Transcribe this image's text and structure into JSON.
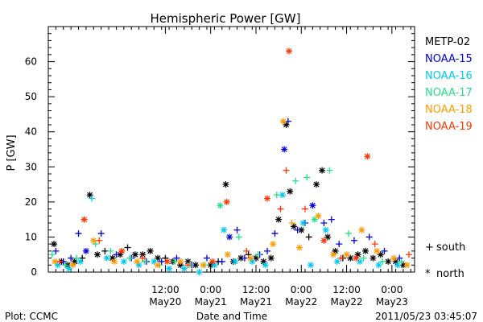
{
  "chart_data": {
    "type": "scatter",
    "title": "Hemispheric Power [GW]",
    "ylabel": "P [GW]",
    "xlabel": "Date and Time",
    "ylim": [
      0,
      70
    ],
    "yticks": [
      0,
      10,
      20,
      30,
      40,
      50,
      60
    ],
    "xlim": [
      "2011-05-19T05:00",
      "2011-05-23T06:00"
    ],
    "xticks": [
      {
        "line1": "12:00",
        "line2": "May20",
        "t": "2011-05-20T12:00"
      },
      {
        "line1": "0:00",
        "line2": "May21",
        "t": "2011-05-21T00:00"
      },
      {
        "line1": "12:00",
        "line2": "May21",
        "t": "2011-05-21T12:00"
      },
      {
        "line1": "0:00",
        "line2": "May22",
        "t": "2011-05-22T00:00"
      },
      {
        "line1": "12:00",
        "line2": "May22",
        "t": "2011-05-22T12:00"
      },
      {
        "line1": "0:00",
        "line2": "May23",
        "t": "2011-05-23T00:00"
      }
    ],
    "legend": [
      {
        "name": "METP-02",
        "color": "#000000"
      },
      {
        "name": "NOAA-15",
        "color": "#0000dd"
      },
      {
        "name": "NOAA-16",
        "color": "#00c8f0"
      },
      {
        "name": "NOAA-17",
        "color": "#22e08a"
      },
      {
        "name": "NOAA-18",
        "color": "#ff9a00"
      },
      {
        "name": "NOAA-19",
        "color": "#ff3300"
      }
    ],
    "marker_legend": {
      "south_symbol": "+",
      "south": "south",
      "north_symbol": "*",
      "north": "north"
    },
    "series": [
      {
        "name": "METP-02",
        "color": "#000000",
        "points": [
          {
            "t": "2011-05-19T06:30",
            "y": 8,
            "h": "n"
          },
          {
            "t": "2011-05-19T08:30",
            "y": 3,
            "h": "n"
          },
          {
            "t": "2011-05-19T10:10",
            "y": 2,
            "h": "n"
          },
          {
            "t": "2011-05-19T12:00",
            "y": 3,
            "h": "n"
          },
          {
            "t": "2011-05-19T14:00",
            "y": 4,
            "h": "s"
          },
          {
            "t": "2011-05-19T16:00",
            "y": 22,
            "h": "n"
          },
          {
            "t": "2011-05-19T18:00",
            "y": 5,
            "h": "n"
          },
          {
            "t": "2011-05-19T20:00",
            "y": 6,
            "h": "s"
          },
          {
            "t": "2011-05-19T22:00",
            "y": 4,
            "h": "n"
          },
          {
            "t": "2011-05-20T00:00",
            "y": 5,
            "h": "n"
          },
          {
            "t": "2011-05-20T02:00",
            "y": 7,
            "h": "s"
          },
          {
            "t": "2011-05-20T04:00",
            "y": 5,
            "h": "n"
          },
          {
            "t": "2011-05-20T06:00",
            "y": 5,
            "h": "n"
          },
          {
            "t": "2011-05-20T08:00",
            "y": 6,
            "h": "n"
          },
          {
            "t": "2011-05-20T10:00",
            "y": 4,
            "h": "n"
          },
          {
            "t": "2011-05-20T12:00",
            "y": 4,
            "h": "s"
          },
          {
            "t": "2011-05-20T14:00",
            "y": 3,
            "h": "n"
          },
          {
            "t": "2011-05-20T16:00",
            "y": 2,
            "h": "n"
          },
          {
            "t": "2011-05-20T18:00",
            "y": 3,
            "h": "n"
          },
          {
            "t": "2011-05-20T20:00",
            "y": 2,
            "h": "n"
          },
          {
            "t": "2011-05-21T00:00",
            "y": 2,
            "h": "n"
          },
          {
            "t": "2011-05-21T02:00",
            "y": 3,
            "h": "s"
          },
          {
            "t": "2011-05-21T04:00",
            "y": 25,
            "h": "n"
          },
          {
            "t": "2011-05-21T06:00",
            "y": 3,
            "h": "n"
          },
          {
            "t": "2011-05-21T08:00",
            "y": 4,
            "h": "n"
          },
          {
            "t": "2011-05-21T10:00",
            "y": 5,
            "h": "s"
          },
          {
            "t": "2011-05-21T12:00",
            "y": 4,
            "h": "n"
          },
          {
            "t": "2011-05-21T14:00",
            "y": 3,
            "h": "n"
          },
          {
            "t": "2011-05-21T16:00",
            "y": 4,
            "h": "n"
          },
          {
            "t": "2011-05-21T18:00",
            "y": 15,
            "h": "n"
          },
          {
            "t": "2011-05-21T20:00",
            "y": 42,
            "h": "n"
          },
          {
            "t": "2011-05-21T21:00",
            "y": 23,
            "h": "n"
          },
          {
            "t": "2011-05-21T22:00",
            "y": 13,
            "h": "n"
          },
          {
            "t": "2011-05-22T00:00",
            "y": 12,
            "h": "n"
          },
          {
            "t": "2011-05-22T02:00",
            "y": 10,
            "h": "s"
          },
          {
            "t": "2011-05-22T04:00",
            "y": 25,
            "h": "n"
          },
          {
            "t": "2011-05-22T05:30",
            "y": 29,
            "h": "n"
          },
          {
            "t": "2011-05-22T07:00",
            "y": 10,
            "h": "n"
          },
          {
            "t": "2011-05-22T09:00",
            "y": 6,
            "h": "n"
          },
          {
            "t": "2011-05-22T11:00",
            "y": 4,
            "h": "s"
          },
          {
            "t": "2011-05-22T13:00",
            "y": 4,
            "h": "n"
          },
          {
            "t": "2011-05-22T15:00",
            "y": 5,
            "h": "n"
          },
          {
            "t": "2011-05-22T17:00",
            "y": 6,
            "h": "n"
          },
          {
            "t": "2011-05-22T19:00",
            "y": 4,
            "h": "n"
          },
          {
            "t": "2011-05-22T21:00",
            "y": 5,
            "h": "n"
          },
          {
            "t": "2011-05-22T23:00",
            "y": 3,
            "h": "n"
          },
          {
            "t": "2011-05-23T01:00",
            "y": 3,
            "h": "n"
          },
          {
            "t": "2011-05-23T03:00",
            "y": 2,
            "h": "n"
          }
        ]
      },
      {
        "name": "NOAA-15",
        "color": "#0000dd",
        "points": [
          {
            "t": "2011-05-19T07:00",
            "y": 6,
            "h": "s"
          },
          {
            "t": "2011-05-19T09:00",
            "y": 3,
            "h": "s"
          },
          {
            "t": "2011-05-19T11:00",
            "y": 4,
            "h": "s"
          },
          {
            "t": "2011-05-19T13:00",
            "y": 11,
            "h": "s"
          },
          {
            "t": "2011-05-19T15:00",
            "y": 6,
            "h": "n"
          },
          {
            "t": "2011-05-19T19:00",
            "y": 11,
            "h": "s"
          },
          {
            "t": "2011-05-19T23:00",
            "y": 5,
            "h": "s"
          },
          {
            "t": "2011-05-20T03:00",
            "y": 4,
            "h": "s"
          },
          {
            "t": "2011-05-20T07:00",
            "y": 3,
            "h": "s"
          },
          {
            "t": "2011-05-20T11:00",
            "y": 3,
            "h": "s"
          },
          {
            "t": "2011-05-20T15:00",
            "y": 4,
            "h": "s"
          },
          {
            "t": "2011-05-20T19:00",
            "y": 2,
            "h": "s"
          },
          {
            "t": "2011-05-20T23:00",
            "y": 4,
            "h": "s"
          },
          {
            "t": "2011-05-21T03:00",
            "y": 3,
            "h": "s"
          },
          {
            "t": "2011-05-21T05:00",
            "y": 10,
            "h": "n"
          },
          {
            "t": "2011-05-21T07:00",
            "y": 12,
            "h": "s"
          },
          {
            "t": "2011-05-21T09:00",
            "y": 4,
            "h": "s"
          },
          {
            "t": "2011-05-21T13:00",
            "y": 5,
            "h": "s"
          },
          {
            "t": "2011-05-21T15:00",
            "y": 6,
            "h": "s"
          },
          {
            "t": "2011-05-21T17:00",
            "y": 11,
            "h": "s"
          },
          {
            "t": "2011-05-21T19:30",
            "y": 35,
            "h": "n"
          },
          {
            "t": "2011-05-21T20:30",
            "y": 43,
            "h": "s"
          },
          {
            "t": "2011-05-21T23:00",
            "y": 12,
            "h": "s"
          },
          {
            "t": "2011-05-22T01:00",
            "y": 14,
            "h": "s"
          },
          {
            "t": "2011-05-22T03:00",
            "y": 19,
            "h": "n"
          },
          {
            "t": "2011-05-22T06:00",
            "y": 14,
            "h": "s"
          },
          {
            "t": "2011-05-22T08:00",
            "y": 15,
            "h": "s"
          },
          {
            "t": "2011-05-22T10:00",
            "y": 8,
            "h": "s"
          },
          {
            "t": "2011-05-22T14:00",
            "y": 9,
            "h": "s"
          },
          {
            "t": "2011-05-22T18:00",
            "y": 10,
            "h": "s"
          },
          {
            "t": "2011-05-22T22:00",
            "y": 6,
            "h": "s"
          },
          {
            "t": "2011-05-23T02:00",
            "y": 4,
            "h": "s"
          }
        ]
      },
      {
        "name": "NOAA-16",
        "color": "#00c8f0",
        "points": [
          {
            "t": "2011-05-19T07:30",
            "y": 2,
            "h": "n"
          },
          {
            "t": "2011-05-19T10:30",
            "y": 1,
            "h": "n"
          },
          {
            "t": "2011-05-19T13:30",
            "y": 3,
            "h": "n"
          },
          {
            "t": "2011-05-19T16:30",
            "y": 21,
            "h": "s"
          },
          {
            "t": "2011-05-19T20:30",
            "y": 4,
            "h": "n"
          },
          {
            "t": "2011-05-20T01:00",
            "y": 3,
            "h": "n"
          },
          {
            "t": "2011-05-20T05:00",
            "y": 2,
            "h": "n"
          },
          {
            "t": "2011-05-20T09:00",
            "y": 3,
            "h": "n"
          },
          {
            "t": "2011-05-20T13:00",
            "y": 1,
            "h": "n"
          },
          {
            "t": "2011-05-20T17:00",
            "y": 1,
            "h": "n"
          },
          {
            "t": "2011-05-20T21:00",
            "y": 0,
            "h": "n"
          },
          {
            "t": "2011-05-21T01:00",
            "y": 2,
            "h": "n"
          },
          {
            "t": "2011-05-21T03:30",
            "y": 12,
            "h": "n"
          },
          {
            "t": "2011-05-21T06:30",
            "y": 3,
            "h": "n"
          },
          {
            "t": "2011-05-21T11:00",
            "y": 3,
            "h": "n"
          },
          {
            "t": "2011-05-21T14:30",
            "y": 2,
            "h": "n"
          },
          {
            "t": "2011-05-21T19:00",
            "y": 22,
            "h": "n"
          },
          {
            "t": "2011-05-22T00:30",
            "y": 14,
            "h": "n"
          },
          {
            "t": "2011-05-22T02:30",
            "y": 2,
            "h": "n"
          },
          {
            "t": "2011-05-22T06:30",
            "y": 12,
            "h": "n"
          },
          {
            "t": "2011-05-22T09:30",
            "y": 3,
            "h": "n"
          },
          {
            "t": "2011-05-22T15:30",
            "y": 3,
            "h": "n"
          },
          {
            "t": "2011-05-22T20:30",
            "y": 2,
            "h": "n"
          },
          {
            "t": "2011-05-23T01:30",
            "y": 2,
            "h": "n"
          }
        ]
      },
      {
        "name": "NOAA-17",
        "color": "#22e08a",
        "points": [
          {
            "t": "2011-05-19T06:00",
            "y": 5,
            "h": "s"
          },
          {
            "t": "2011-05-19T09:30",
            "y": 2,
            "h": "s"
          },
          {
            "t": "2011-05-19T12:30",
            "y": 4,
            "h": "s"
          },
          {
            "t": "2011-05-19T17:30",
            "y": 8,
            "h": "s"
          },
          {
            "t": "2011-05-19T21:30",
            "y": 6,
            "h": "s"
          },
          {
            "t": "2011-05-20T02:30",
            "y": 4,
            "h": "s"
          },
          {
            "t": "2011-05-20T06:30",
            "y": 3,
            "h": "s"
          },
          {
            "t": "2011-05-20T10:30",
            "y": 2,
            "h": "s"
          },
          {
            "t": "2011-05-20T14:30",
            "y": 3,
            "h": "s"
          },
          {
            "t": "2011-05-20T18:30",
            "y": 2,
            "h": "s"
          },
          {
            "t": "2011-05-20T22:30",
            "y": 2,
            "h": "s"
          },
          {
            "t": "2011-05-21T02:30",
            "y": 19,
            "h": "n"
          },
          {
            "t": "2011-05-21T07:30",
            "y": 10,
            "h": "s"
          },
          {
            "t": "2011-05-21T12:30",
            "y": 5,
            "h": "s"
          },
          {
            "t": "2011-05-21T17:30",
            "y": 22,
            "h": "s"
          },
          {
            "t": "2011-05-21T22:30",
            "y": 26,
            "h": "s"
          },
          {
            "t": "2011-05-22T01:30",
            "y": 27,
            "h": "s"
          },
          {
            "t": "2011-05-22T03:30",
            "y": 15,
            "h": "n"
          },
          {
            "t": "2011-05-22T07:30",
            "y": 29,
            "h": "s"
          },
          {
            "t": "2011-05-22T12:30",
            "y": 11,
            "h": "s"
          },
          {
            "t": "2011-05-22T16:30",
            "y": 4,
            "h": "s"
          },
          {
            "t": "2011-05-22T21:30",
            "y": 3,
            "h": "s"
          },
          {
            "t": "2011-05-23T02:30",
            "y": 3,
            "h": "s"
          }
        ]
      },
      {
        "name": "NOAA-18",
        "color": "#ff9a00",
        "points": [
          {
            "t": "2011-05-19T06:45",
            "y": 3,
            "h": "n"
          },
          {
            "t": "2011-05-19T11:30",
            "y": 2,
            "h": "n"
          },
          {
            "t": "2011-05-19T17:00",
            "y": 9,
            "h": "n"
          },
          {
            "t": "2011-05-19T22:30",
            "y": 3,
            "h": "n"
          },
          {
            "t": "2011-05-20T04:30",
            "y": 3,
            "h": "n"
          },
          {
            "t": "2011-05-20T10:00",
            "y": 2,
            "h": "n"
          },
          {
            "t": "2011-05-20T16:00",
            "y": 3,
            "h": "n"
          },
          {
            "t": "2011-05-20T22:00",
            "y": 2,
            "h": "n"
          },
          {
            "t": "2011-05-21T04:30",
            "y": 5,
            "h": "n"
          },
          {
            "t": "2011-05-21T10:30",
            "y": 4,
            "h": "n"
          },
          {
            "t": "2011-05-21T16:30",
            "y": 8,
            "h": "n"
          },
          {
            "t": "2011-05-21T19:15",
            "y": 43,
            "h": "n"
          },
          {
            "t": "2011-05-21T21:30",
            "y": 14,
            "h": "s"
          },
          {
            "t": "2011-05-21T23:30",
            "y": 7,
            "h": "n"
          },
          {
            "t": "2011-05-22T04:30",
            "y": 16,
            "h": "n"
          },
          {
            "t": "2011-05-22T08:30",
            "y": 5,
            "h": "n"
          },
          {
            "t": "2011-05-22T12:00",
            "y": 5,
            "h": "n"
          },
          {
            "t": "2011-05-22T16:00",
            "y": 12,
            "h": "n"
          },
          {
            "t": "2011-05-22T20:00",
            "y": 6,
            "h": "n"
          },
          {
            "t": "2011-05-23T00:30",
            "y": 4,
            "h": "n"
          },
          {
            "t": "2011-05-23T04:00",
            "y": 2,
            "h": "n"
          }
        ]
      },
      {
        "name": "NOAA-19",
        "color": "#ff3300",
        "points": [
          {
            "t": "2011-05-19T08:00",
            "y": 3,
            "h": "s"
          },
          {
            "t": "2011-05-19T14:30",
            "y": 15,
            "h": "n"
          },
          {
            "t": "2011-05-19T18:30",
            "y": 9,
            "h": "s"
          },
          {
            "t": "2011-05-20T00:30",
            "y": 6,
            "h": "n"
          },
          {
            "t": "2011-05-20T06:00",
            "y": 4,
            "h": "s"
          },
          {
            "t": "2011-05-20T12:30",
            "y": 3,
            "h": "n"
          },
          {
            "t": "2011-05-20T18:00",
            "y": 2,
            "h": "s"
          },
          {
            "t": "2011-05-21T00:30",
            "y": 3,
            "h": "n"
          },
          {
            "t": "2011-05-21T04:15",
            "y": 20,
            "h": "n"
          },
          {
            "t": "2011-05-21T09:30",
            "y": 6,
            "h": "s"
          },
          {
            "t": "2011-05-21T15:00",
            "y": 21,
            "h": "n"
          },
          {
            "t": "2011-05-21T18:30",
            "y": 18,
            "h": "s"
          },
          {
            "t": "2011-05-21T20:00",
            "y": 29,
            "h": "s"
          },
          {
            "t": "2011-05-21T20:45",
            "y": 63,
            "h": "n"
          },
          {
            "t": "2011-05-22T01:00",
            "y": 18,
            "h": "s"
          },
          {
            "t": "2011-05-22T06:00",
            "y": 9,
            "h": "n"
          },
          {
            "t": "2011-05-22T10:30",
            "y": 4,
            "h": "s"
          },
          {
            "t": "2011-05-22T14:30",
            "y": 4,
            "h": "n"
          },
          {
            "t": "2011-05-22T17:30",
            "y": 33,
            "h": "n"
          },
          {
            "t": "2011-05-22T19:30",
            "y": 8,
            "h": "s"
          },
          {
            "t": "2011-05-23T04:30",
            "y": 5,
            "h": "s"
          }
        ]
      }
    ]
  },
  "footer": {
    "plot_credit": "Plot: CCMC",
    "timestamp": "2011/05/23 03:45:07"
  }
}
